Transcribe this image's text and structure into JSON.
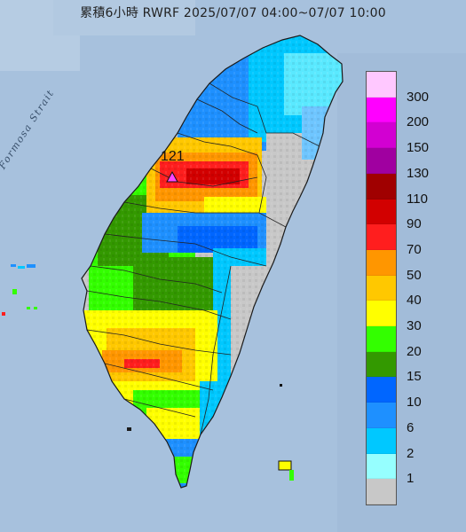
{
  "title": "累積6小時 RWRF 2025/07/07 04:00~07/07 10:00",
  "strait_label": "Formosa Strait",
  "max_value": "121",
  "legend": {
    "labels": [
      "300",
      "200",
      "150",
      "130",
      "110",
      "90",
      "70",
      "50",
      "40",
      "30",
      "20",
      "15",
      "10",
      "6",
      "2",
      "1"
    ],
    "colors": [
      "#ffc8ff",
      "#ff00ff",
      "#d200d2",
      "#a000a0",
      "#a00000",
      "#d20000",
      "#ff1e1e",
      "#ff9600",
      "#ffc800",
      "#ffff00",
      "#33ff00",
      "#339900",
      "#0066ff",
      "#1e90ff",
      "#00c8ff",
      "#96ffff",
      "#c8c8c8"
    ]
  }
}
